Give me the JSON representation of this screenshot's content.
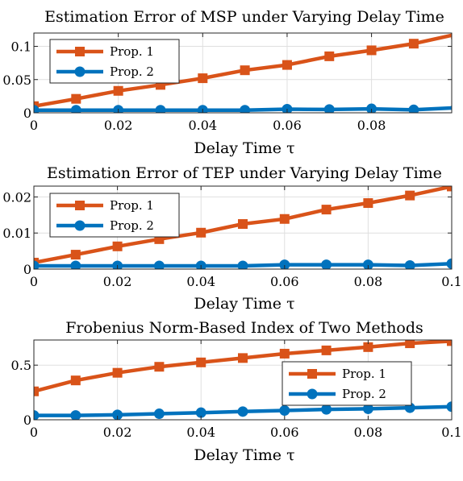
{
  "chart_data": [
    {
      "type": "line",
      "title": "Estimation Error of MSP under Varying Delay Time",
      "xlabel": "Delay Time τ",
      "ylabel": "",
      "x": [
        0,
        0.01,
        0.02,
        0.03,
        0.04,
        0.05,
        0.06,
        0.07,
        0.08,
        0.09,
        0.1
      ],
      "xlim": [
        0,
        0.099
      ],
      "ylim": [
        0,
        0.12
      ],
      "xticks": [
        0,
        0.02,
        0.04,
        0.06,
        0.08
      ],
      "xtick_labels": [
        "0",
        "0.02",
        "0.04",
        "0.06",
        "0.08"
      ],
      "yticks": [
        0,
        0.05,
        0.1
      ],
      "ytick_labels": [
        "0",
        "0.05",
        "0.1"
      ],
      "grid": true,
      "legend_position": "top-left",
      "series": [
        {
          "name": "Prop. 1",
          "color": "#D95319",
          "marker": "square",
          "values": [
            0.01,
            0.021,
            0.033,
            0.042,
            0.052,
            0.064,
            0.072,
            0.085,
            0.094,
            0.104,
            0.118
          ]
        },
        {
          "name": "Prop. 2",
          "color": "#0072BD",
          "marker": "circle",
          "values": [
            0.004,
            0.004,
            0.004,
            0.004,
            0.004,
            0.004,
            0.0055,
            0.005,
            0.006,
            0.0045,
            0.0075
          ]
        }
      ]
    },
    {
      "type": "line",
      "title": "Estimation Error of TEP under Varying Delay Time",
      "xlabel": "Delay Time τ",
      "ylabel": "",
      "x": [
        0,
        0.01,
        0.02,
        0.03,
        0.04,
        0.05,
        0.06,
        0.07,
        0.08,
        0.09,
        0.1
      ],
      "xlim": [
        0,
        0.1
      ],
      "ylim": [
        0,
        0.023
      ],
      "xticks": [
        0,
        0.02,
        0.04,
        0.06,
        0.08,
        0.1
      ],
      "xtick_labels": [
        "0",
        "0.02",
        "0.04",
        "0.06",
        "0.08",
        "0.1"
      ],
      "yticks": [
        0,
        0.01,
        0.02
      ],
      "ytick_labels": [
        "0",
        "0.01",
        "0.02"
      ],
      "grid": true,
      "legend_position": "top-left",
      "series": [
        {
          "name": "Prop. 1",
          "color": "#D95319",
          "marker": "square",
          "values": [
            0.0018,
            0.004,
            0.0063,
            0.0083,
            0.0101,
            0.0125,
            0.0139,
            0.0165,
            0.0183,
            0.0204,
            0.0229
          ]
        },
        {
          "name": "Prop. 2",
          "color": "#0072BD",
          "marker": "circle",
          "values": [
            0.0009,
            0.0009,
            0.0009,
            0.0009,
            0.0009,
            0.0009,
            0.0012,
            0.0012,
            0.0012,
            0.001,
            0.0015
          ]
        }
      ]
    },
    {
      "type": "line",
      "title": "Frobenius Norm-Based Index of Two Methods",
      "xlabel": "Delay Time τ",
      "ylabel": "",
      "x": [
        0,
        0.01,
        0.02,
        0.03,
        0.04,
        0.05,
        0.06,
        0.07,
        0.08,
        0.09,
        0.1
      ],
      "xlim": [
        0,
        0.1
      ],
      "ylim": [
        0,
        0.73
      ],
      "xticks": [
        0,
        0.02,
        0.04,
        0.06,
        0.08,
        0.1
      ],
      "xtick_labels": [
        "0",
        "0.02",
        "0.04",
        "0.06",
        "0.08",
        "0.1"
      ],
      "yticks": [
        0,
        0.5
      ],
      "ytick_labels": [
        "0",
        "0.5"
      ],
      "grid": true,
      "legend_position": "right",
      "series": [
        {
          "name": "Prop. 1",
          "color": "#D95319",
          "marker": "square",
          "values": [
            0.26,
            0.36,
            0.43,
            0.485,
            0.525,
            0.565,
            0.605,
            0.635,
            0.665,
            0.7,
            0.72
          ]
        },
        {
          "name": "Prop. 2",
          "color": "#0072BD",
          "marker": "circle",
          "values": [
            0.04,
            0.04,
            0.045,
            0.055,
            0.065,
            0.075,
            0.085,
            0.095,
            0.1,
            0.11,
            0.12
          ]
        }
      ]
    }
  ]
}
